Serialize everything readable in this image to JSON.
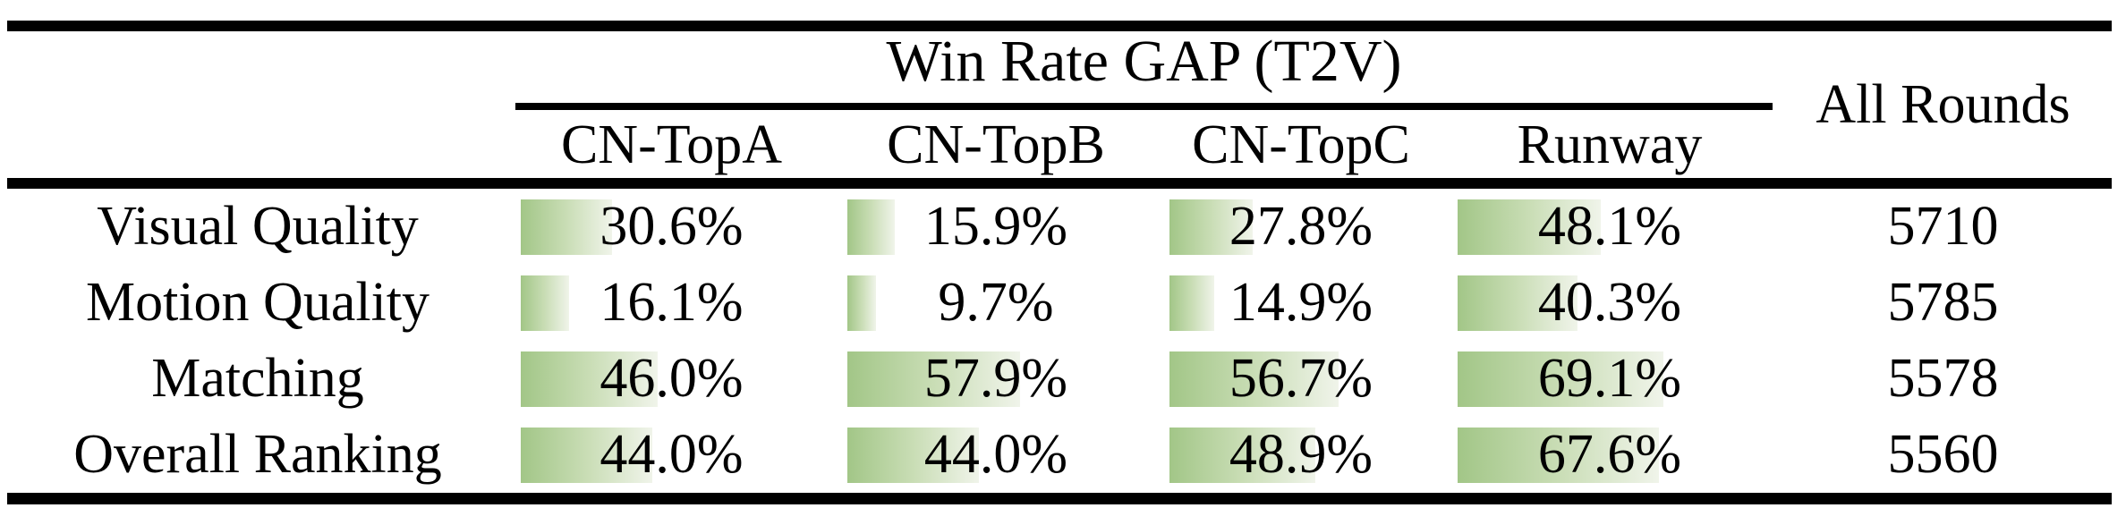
{
  "table": {
    "title": "Win Rate GAP (T2V)",
    "all_rounds_header": "All Rounds",
    "columns": [
      "CN-TopA",
      "CN-TopB",
      "CN-TopC",
      "Runway"
    ],
    "bar_color_left": "#a2c687",
    "bar_color_right": "#f0f4ea",
    "rule_color": "#000000",
    "rows": [
      {
        "label": "Visual Quality",
        "cells": [
          {
            "text": "30.6%",
            "value": 30.6
          },
          {
            "text": "15.9%",
            "value": 15.9
          },
          {
            "text": "27.8%",
            "value": 27.8
          },
          {
            "text": "48.1%",
            "value": 48.1
          }
        ],
        "all_rounds": "5710"
      },
      {
        "label": "Motion Quality",
        "cells": [
          {
            "text": "16.1%",
            "value": 16.1
          },
          {
            "text": "9.7%",
            "value": 9.7
          },
          {
            "text": "14.9%",
            "value": 14.9
          },
          {
            "text": "40.3%",
            "value": 40.3
          }
        ],
        "all_rounds": "5785"
      },
      {
        "label": "Matching",
        "cells": [
          {
            "text": "46.0%",
            "value": 46.0
          },
          {
            "text": "57.9%",
            "value": 57.9
          },
          {
            "text": "56.7%",
            "value": 56.7
          },
          {
            "text": "69.1%",
            "value": 69.1
          }
        ],
        "all_rounds": "5578"
      },
      {
        "label": "Overall Ranking",
        "cells": [
          {
            "text": "44.0%",
            "value": 44.0
          },
          {
            "text": "44.0%",
            "value": 44.0
          },
          {
            "text": "48.9%",
            "value": 48.9
          },
          {
            "text": "67.6%",
            "value": 67.6
          }
        ],
        "all_rounds": "5560"
      }
    ]
  }
}
